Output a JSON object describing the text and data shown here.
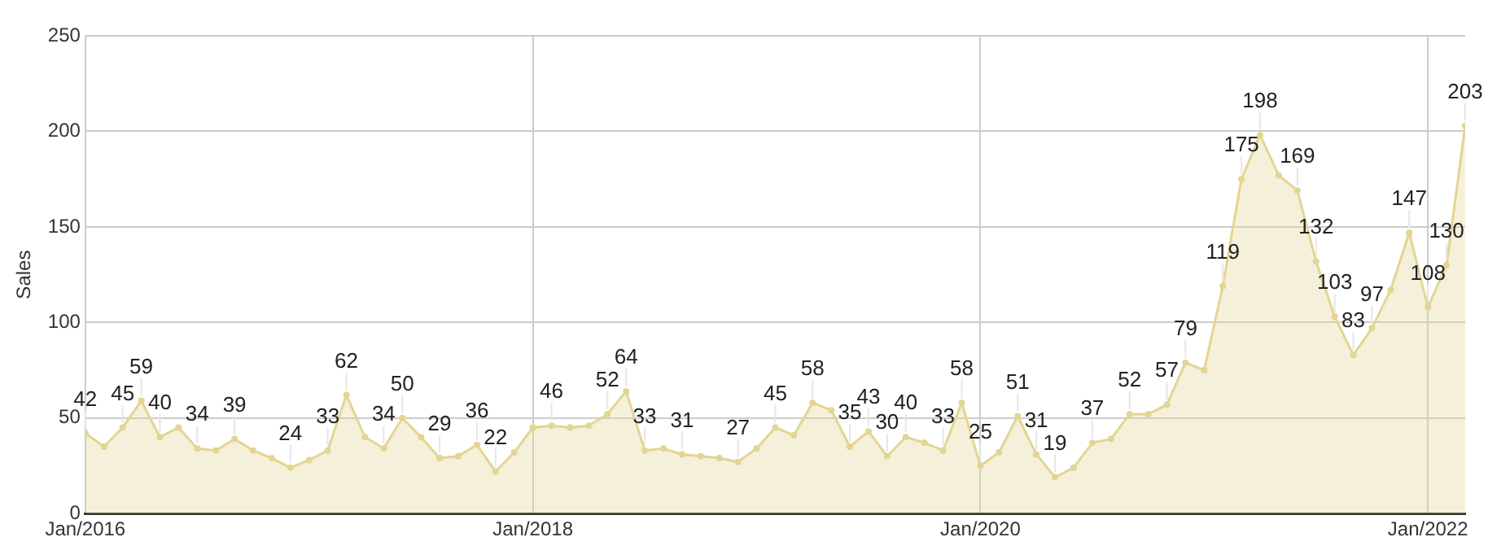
{
  "chart_data": {
    "type": "area",
    "ylabel": "Sales",
    "color": "#e3d592",
    "x": [
      "2016-01",
      "2016-02",
      "2016-03",
      "2016-04",
      "2016-05",
      "2016-06",
      "2016-07",
      "2016-08",
      "2016-09",
      "2016-10",
      "2016-11",
      "2016-12",
      "2017-01",
      "2017-02",
      "2017-03",
      "2017-04",
      "2017-05",
      "2017-06",
      "2017-07",
      "2017-08",
      "2017-09",
      "2017-10",
      "2017-11",
      "2017-12",
      "2018-01",
      "2018-02",
      "2018-03",
      "2018-04",
      "2018-05",
      "2018-06",
      "2018-07",
      "2018-08",
      "2018-09",
      "2018-10",
      "2018-11",
      "2018-12",
      "2019-01",
      "2019-02",
      "2019-03",
      "2019-04",
      "2019-05",
      "2019-06",
      "2019-07",
      "2019-08",
      "2019-09",
      "2019-10",
      "2019-11",
      "2019-12",
      "2020-01",
      "2020-02",
      "2020-03",
      "2020-04",
      "2020-05",
      "2020-06",
      "2020-07",
      "2020-08",
      "2020-09",
      "2020-10",
      "2020-11",
      "2020-12",
      "2021-01",
      "2021-02",
      "2021-03",
      "2021-04",
      "2021-05",
      "2021-06",
      "2021-07",
      "2021-08",
      "2021-09",
      "2021-10",
      "2021-11",
      "2021-12",
      "2022-01",
      "2022-02",
      "2022-03"
    ],
    "values": [
      42,
      35,
      45,
      59,
      40,
      45,
      34,
      33,
      39,
      33,
      29,
      24,
      28,
      33,
      62,
      40,
      34,
      50,
      40,
      29,
      30,
      36,
      22,
      32,
      45,
      46,
      45,
      46,
      52,
      64,
      33,
      34,
      31,
      30,
      29,
      27,
      34,
      45,
      41,
      58,
      54,
      35,
      43,
      30,
      40,
      37,
      33,
      58,
      25,
      32,
      51,
      31,
      19,
      24,
      37,
      39,
      52,
      52,
      57,
      79,
      75,
      119,
      175,
      198,
      177,
      169,
      132,
      103,
      83,
      97,
      117,
      147,
      108,
      130,
      203
    ],
    "value_labels": [
      "42",
      null,
      "45",
      "59",
      "40",
      null,
      "34",
      null,
      "39",
      null,
      null,
      "24",
      null,
      "33",
      "62",
      null,
      "34",
      "50",
      null,
      "29",
      null,
      "36",
      "22",
      null,
      null,
      "46",
      null,
      null,
      "52",
      "64",
      "33",
      null,
      "31",
      null,
      null,
      "27",
      null,
      "45",
      null,
      "58",
      null,
      "35",
      "43",
      "30",
      "40",
      null,
      "33",
      "58",
      "25",
      null,
      "51",
      "31",
      "19",
      null,
      "37",
      null,
      "52",
      null,
      "57",
      "79",
      null,
      "119",
      "175",
      "198",
      null,
      "169",
      "132",
      "103",
      "83",
      "97",
      null,
      "147",
      "108",
      "130",
      "203"
    ],
    "xlim": [
      "2016-01",
      "2022-03"
    ],
    "xticks": [
      {
        "value": "2016-01",
        "label": "Jan/2016"
      },
      {
        "value": "2018-01",
        "label": "Jan/2018"
      },
      {
        "value": "2020-01",
        "label": "Jan/2020"
      },
      {
        "value": "2022-01",
        "label": "Jan/2022"
      }
    ],
    "ylim": [
      0,
      250
    ],
    "yticks": [
      0,
      50,
      100,
      150,
      200,
      250
    ],
    "grid": true,
    "marker": "circle",
    "legend": false
  }
}
